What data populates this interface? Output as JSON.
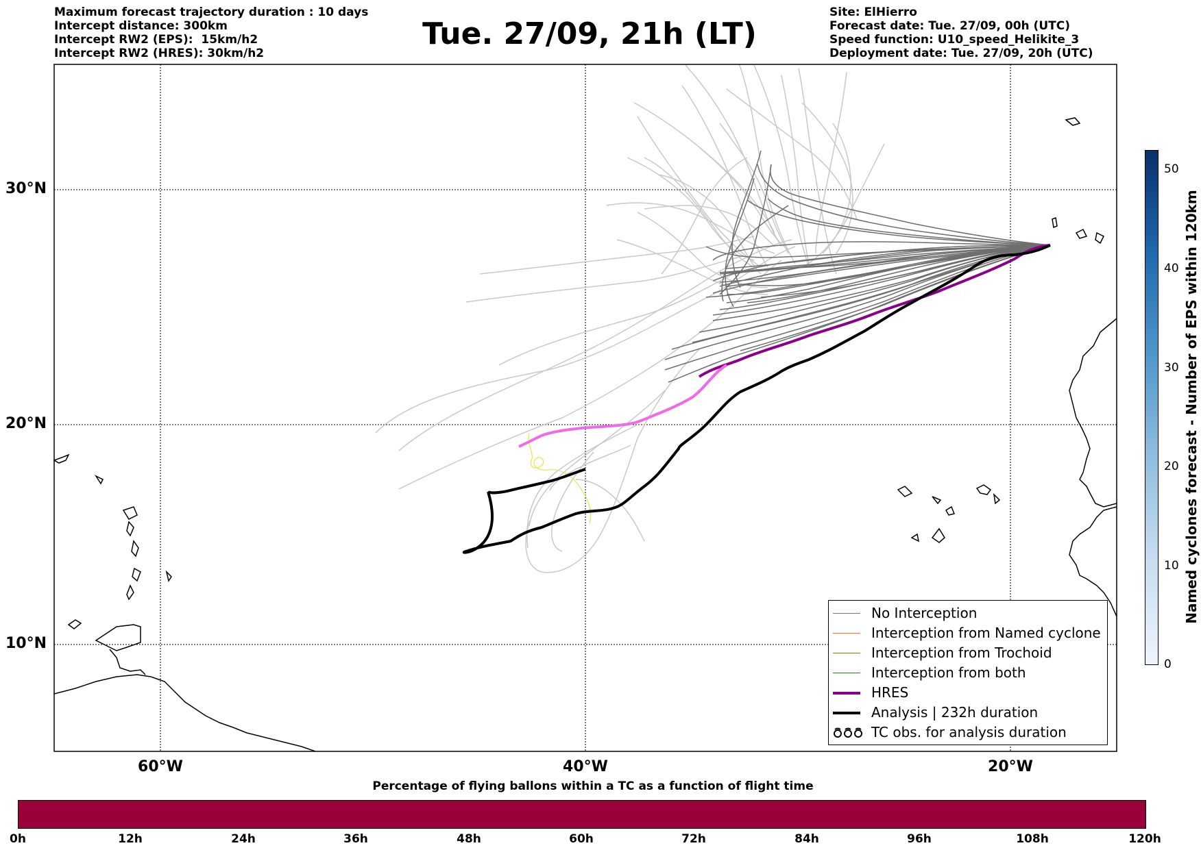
{
  "header_left": [
    "Maximum forecast trajectory duration : 10 days",
    "Intercept distance: 300km",
    "Intercept RW2 (EPS):  15km/h2",
    "Intercept RW2 (HRES): 30km/h2"
  ],
  "title": "Tue. 27/09, 21h (LT)",
  "header_right": [
    "Site: ElHierro",
    "Forecast date: Tue. 27/09, 00h (UTC)",
    "Speed function: U10_speed_Helikite_3",
    "Deployment date: Tue. 27/09, 20h (UTC)"
  ],
  "map": {
    "lat_labels": [
      "30°N",
      "20°N",
      "10°N"
    ],
    "lon_labels": [
      "60°W",
      "40°W",
      "20°W"
    ]
  },
  "legend": [
    {
      "label": "No Interception",
      "color": "#777777"
    },
    {
      "label": "Interception from Named cyclone",
      "color": "#ff6a2a"
    },
    {
      "label": "Interception from Trochoid",
      "color": "#808000"
    },
    {
      "label": "Interception from both",
      "color": "#1a8a1a"
    },
    {
      "label": "HRES",
      "color": "#8b008b"
    },
    {
      "label": "Analysis | 232h duration",
      "color": "#000000"
    },
    {
      "label": "TC obs. for analysis duration",
      "color": "#000000"
    }
  ],
  "colorbar_vertical": {
    "label": "Named cyclones forecast - Number of EPS within 120km",
    "ticks": [
      "0",
      "10",
      "20",
      "30",
      "40",
      "50"
    ],
    "range": [
      0,
      52
    ]
  },
  "colorbar_horizontal": {
    "title": "Percentage of flying ballons within a TC as a function of flight time",
    "ticks": [
      "0h",
      "12h",
      "24h",
      "36h",
      "48h",
      "60h",
      "72h",
      "84h",
      "96h",
      "108h",
      "120h"
    ],
    "color": "#9c003b"
  }
}
